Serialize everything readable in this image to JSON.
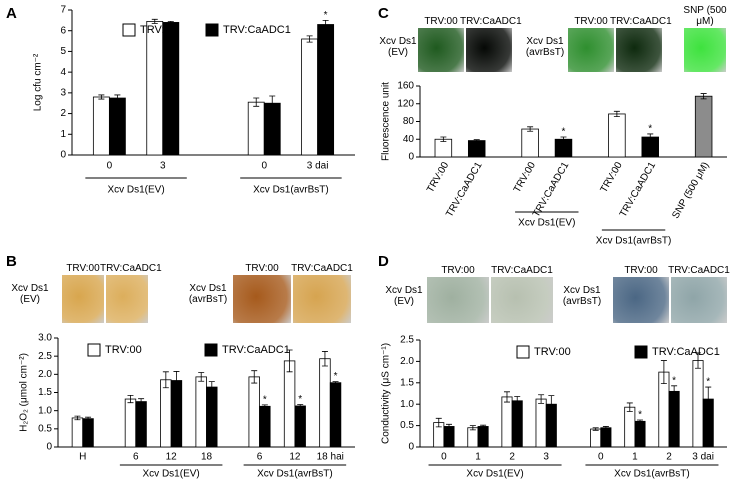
{
  "chart_data": [
    {
      "panel": "A",
      "type": "bar",
      "ylabel": "Log cfu cm⁻²",
      "groups": [
        {
          "label": "Xcv Ds1(EV)",
          "categories": [
            "0",
            "3"
          ]
        },
        {
          "label": "Xcv Ds1(avrBsT)",
          "categories": [
            "0",
            "3 dai"
          ]
        }
      ],
      "series": [
        {
          "name": "TRV:00",
          "color": "#ffffff",
          "values": [
            2.8,
            6.45,
            2.55,
            5.6
          ],
          "errors": [
            0.1,
            0.1,
            0.2,
            0.15
          ]
        },
        {
          "name": "TRV:CaADC1",
          "color": "#000000",
          "values": [
            2.75,
            6.4,
            2.5,
            6.3
          ],
          "errors": [
            0.15,
            0.05,
            0.35,
            0.2
          ],
          "marks": [
            null,
            null,
            null,
            "*"
          ]
        }
      ],
      "ylim": [
        0,
        7
      ],
      "yticks": [
        0,
        1,
        2,
        3,
        4,
        5,
        6,
        7
      ]
    },
    {
      "panel": "B",
      "type": "bar",
      "ylabel": "H₂O₂ (μmol cm⁻²)",
      "images": {
        "columns": [
          "TRV:00",
          "TRV:CaADC1",
          "TRV:00",
          "TRV:CaADC1"
        ],
        "rows": [
          "Xcv Ds1 (EV)",
          "Xcv Ds1 (avrBsT)"
        ]
      },
      "groups": [
        {
          "label": null,
          "categories": [
            "H"
          ]
        },
        {
          "label": "Xcv Ds1(EV)",
          "categories": [
            "6",
            "12",
            "18"
          ]
        },
        {
          "label": "Xcv Ds1(avrBsT)",
          "categories": [
            "6",
            "12",
            "18 hai"
          ]
        }
      ],
      "series": [
        {
          "name": "TRV:00",
          "color": "#ffffff",
          "values": [
            0.8,
            1.32,
            1.85,
            1.93,
            1.93,
            2.37,
            2.43
          ],
          "errors": [
            0.05,
            0.1,
            0.22,
            0.12,
            0.17,
            0.3,
            0.2
          ]
        },
        {
          "name": "TRV:CaADC1",
          "color": "#000000",
          "values": [
            0.78,
            1.25,
            1.83,
            1.65,
            1.12,
            1.13,
            1.77
          ],
          "errors": [
            0.04,
            0.08,
            0.25,
            0.15,
            0.04,
            0.04,
            0.03
          ],
          "marks": [
            null,
            null,
            null,
            null,
            "*",
            "*",
            "*"
          ]
        }
      ],
      "ylim": [
        0,
        3
      ],
      "yticks": [
        0,
        0.5,
        {
          "value": 1,
          "label": "1.0"
        },
        1.5,
        {
          "value": 2,
          "label": "2.0"
        },
        2.5,
        {
          "value": 3,
          "label": "3.0"
        }
      ]
    },
    {
      "panel": "C",
      "type": "bar",
      "ylabel": "Fluorescence unit",
      "images": {
        "columns": [
          "TRV:00",
          "TRV:CaADC1",
          "TRV:00",
          "TRV:CaADC1",
          "SNP (500 μM)"
        ],
        "rows": [
          "Xcv Ds1 (EV)",
          "Xcv Ds1 (avrBsT)"
        ]
      },
      "groups": [
        {
          "label": null,
          "categories": [
            "TRV:00",
            "TRV:CaADC1"
          ]
        },
        {
          "label": "Xcv Ds1(EV)",
          "categories": [
            "TRV:00",
            "TRV:CaADC1"
          ]
        },
        {
          "label": "Xcv Ds1(avrBsT)",
          "categories": [
            "TRV:00",
            "TRV:CaADC1"
          ]
        },
        {
          "label": null,
          "categories": [
            "SNP (500 μM)"
          ]
        }
      ],
      "series": [
        {
          "values": [
            40,
            37,
            63,
            40,
            97,
            45,
            137
          ],
          "errors": [
            5,
            2,
            5,
            5,
            6,
            7,
            6
          ],
          "colors": [
            "#ffffff",
            "#000000",
            "#ffffff",
            "#000000",
            "#ffffff",
            "#000000",
            "#8c8c8c"
          ],
          "marks": [
            null,
            null,
            null,
            "*",
            null,
            "*",
            null
          ]
        }
      ],
      "ylim": [
        0,
        160
      ],
      "yticks": [
        0,
        40,
        80,
        120,
        160
      ]
    },
    {
      "panel": "D",
      "type": "bar",
      "ylabel": "Conductivity (μS cm⁻¹)",
      "images": {
        "columns": [
          "TRV:00",
          "TRV:CaADC1",
          "TRV:00",
          "TRV:CaADC1"
        ],
        "rows": [
          "Xcv Ds1 (EV)",
          "Xcv Ds1 (avrBsT)"
        ]
      },
      "groups": [
        {
          "label": "Xcv Ds1(EV)",
          "categories": [
            "0",
            "1",
            "2",
            "3"
          ]
        },
        {
          "label": "Xcv Ds1(avrBsT)",
          "categories": [
            "0",
            "1",
            "2",
            "3 dai"
          ]
        }
      ],
      "series": [
        {
          "name": "TRV:00",
          "color": "#ffffff",
          "values": [
            0.57,
            0.45,
            1.17,
            1.12,
            0.42,
            0.93,
            1.75,
            2.02
          ],
          "errors": [
            0.1,
            0.05,
            0.12,
            0.1,
            0.03,
            0.1,
            0.27,
            0.18
          ]
        },
        {
          "name": "TRV:CaADC1",
          "color": "#000000",
          "values": [
            0.48,
            0.48,
            1.08,
            1.0,
            0.45,
            0.6,
            1.3,
            1.12
          ],
          "errors": [
            0.05,
            0.03,
            0.1,
            0.2,
            0.03,
            0.03,
            0.13,
            0.28
          ],
          "marks": [
            null,
            null,
            null,
            null,
            null,
            "*",
            "*",
            "*"
          ]
        }
      ],
      "ylim": [
        0,
        2.5
      ],
      "yticks": [
        0,
        0.5,
        {
          "value": 1,
          "label": "1.0"
        },
        1.5,
        {
          "value": 2,
          "label": "2.0"
        },
        2.5
      ]
    }
  ]
}
